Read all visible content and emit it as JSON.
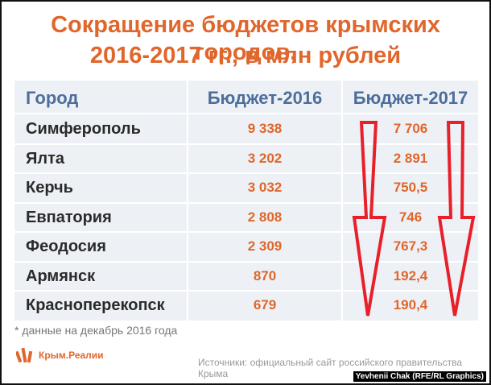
{
  "chart_data": {
    "type": "table",
    "title_line1": "Сокращение бюджетов крымских городов,",
    "title_line2": "2016-2017 гг., в млн рублей",
    "columns": [
      "Город",
      "Бюджет-2016",
      "Бюджет-2017"
    ],
    "rows": [
      {
        "city": "Симферополь",
        "b2016": "9 338",
        "b2017": "7 706"
      },
      {
        "city": "Ялта",
        "b2016": "3 202",
        "b2017": "2 891"
      },
      {
        "city": "Керчь",
        "b2016": "3 032",
        "b2017": "750,5"
      },
      {
        "city": "Евпатория",
        "b2016": "2 808",
        "b2017": "746"
      },
      {
        "city": "Феодосия",
        "b2016": "2 309",
        "b2017": "767,3"
      },
      {
        "city": "Армянск",
        "b2016": "870",
        "b2017": "192,4"
      },
      {
        "city": "Красноперекопск",
        "b2016": "679",
        "b2017": "190,4"
      }
    ],
    "note": "* данные на декабрь 2016 года"
  },
  "footer": {
    "logo_text": "Крым.Реалии",
    "source": "Источники: официальный сайт российского правительства Крыма",
    "credit": "Yevhenii Chak (RFE/RL Graphics)"
  },
  "colors": {
    "accent": "#e0662b",
    "header_text": "#4d6e9a",
    "table_bg": "#edf1f6",
    "arrow": "#e8202a"
  }
}
